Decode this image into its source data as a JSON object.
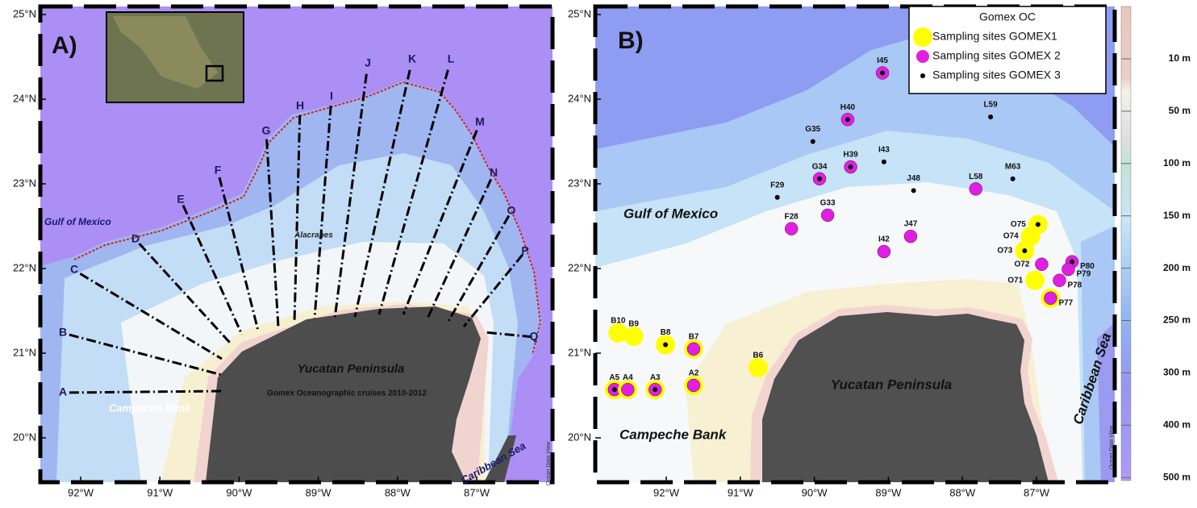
{
  "panel_a": {
    "label": "A)",
    "lat_ticks": [
      {
        "value": 25,
        "label": "25°N"
      },
      {
        "value": 24,
        "label": "24°N"
      },
      {
        "value": 23,
        "label": "23°N"
      },
      {
        "value": 22,
        "label": "22°N"
      },
      {
        "value": 21,
        "label": "21°N"
      },
      {
        "value": 20,
        "label": "20°N"
      }
    ],
    "lon_ticks": [
      {
        "value": -92,
        "label": "92°W"
      },
      {
        "value": -91,
        "label": "91°W"
      },
      {
        "value": -90,
        "label": "90°W"
      },
      {
        "value": -89,
        "label": "89°W"
      },
      {
        "value": -88,
        "label": "88°W"
      },
      {
        "value": -87,
        "label": "87°W"
      }
    ],
    "transects": [
      "A",
      "B",
      "C",
      "D",
      "E",
      "F",
      "G",
      "H",
      "I",
      "J",
      "K",
      "L",
      "M",
      "N",
      "O",
      "P",
      "Q"
    ],
    "places": [
      "Gulf of Mexico",
      "Alacranes",
      "Yucatan Peninsula",
      "Gomex Oceanographic cruises 2010-2012",
      "Campeche Bank",
      "Caribbean Sea"
    ],
    "credit": "Ocean Data View"
  },
  "panel_b": {
    "label": "B)",
    "lat_ticks": [
      {
        "value": 25,
        "label": "25°N"
      },
      {
        "value": 24,
        "label": "24°N"
      },
      {
        "value": 23,
        "label": "23°N"
      },
      {
        "value": 22,
        "label": "22°N"
      },
      {
        "value": 21,
        "label": "21°N"
      },
      {
        "value": 20,
        "label": "20°N"
      }
    ],
    "lon_ticks": [
      {
        "value": -92,
        "label": "92°W"
      },
      {
        "value": -91,
        "label": "91°W"
      },
      {
        "value": -90,
        "label": "90°W"
      },
      {
        "value": -89,
        "label": "89°W"
      },
      {
        "value": -88,
        "label": "88°W"
      },
      {
        "value": -87,
        "label": "87°W"
      }
    ],
    "legend": {
      "title": "Gomex OC",
      "series": [
        {
          "name": "Sampling sites GOMEX1",
          "color": "#ffff00"
        },
        {
          "name": "Sampling sites GOMEX 2",
          "color": "#e020e0"
        },
        {
          "name": "Sampling sites GOMEX 3",
          "color": "#000000"
        }
      ]
    },
    "sites": [
      {
        "label": "I45",
        "lon": -89.08,
        "lat": 24.31,
        "sets": [
          false,
          true,
          true
        ]
      },
      {
        "label": "H40",
        "lon": -89.55,
        "lat": 23.76,
        "sets": [
          false,
          true,
          true
        ]
      },
      {
        "label": "L59",
        "lon": -87.62,
        "lat": 23.79,
        "sets": [
          false,
          false,
          true
        ]
      },
      {
        "label": "G35",
        "lon": -90.02,
        "lat": 23.5,
        "sets": [
          false,
          false,
          true
        ]
      },
      {
        "label": "H39",
        "lon": -89.51,
        "lat": 23.2,
        "sets": [
          false,
          true,
          true
        ]
      },
      {
        "label": "I43",
        "lon": -89.06,
        "lat": 23.26,
        "sets": [
          false,
          false,
          true
        ]
      },
      {
        "label": "G34",
        "lon": -89.93,
        "lat": 23.06,
        "sets": [
          false,
          true,
          true
        ]
      },
      {
        "label": "J48",
        "lon": -88.66,
        "lat": 22.92,
        "sets": [
          false,
          false,
          true
        ]
      },
      {
        "label": "L58",
        "lon": -87.82,
        "lat": 22.94,
        "sets": [
          false,
          true,
          false
        ]
      },
      {
        "label": "M63",
        "lon": -87.32,
        "lat": 23.06,
        "sets": [
          false,
          false,
          true
        ]
      },
      {
        "label": "F29",
        "lon": -90.5,
        "lat": 22.84,
        "sets": [
          false,
          false,
          true
        ]
      },
      {
        "label": "F28",
        "lon": -90.31,
        "lat": 22.47,
        "sets": [
          false,
          true,
          false
        ]
      },
      {
        "label": "G33",
        "lon": -89.82,
        "lat": 22.63,
        "sets": [
          false,
          true,
          false
        ]
      },
      {
        "label": "J47",
        "lon": -88.7,
        "lat": 22.38,
        "sets": [
          false,
          true,
          false
        ]
      },
      {
        "label": "I42",
        "lon": -89.06,
        "lat": 22.2,
        "sets": [
          false,
          true,
          false
        ]
      },
      {
        "label": "O75",
        "lon": -86.98,
        "lat": 22.52,
        "sets": [
          true,
          false,
          true
        ]
      },
      {
        "label": "O74",
        "lon": -87.08,
        "lat": 22.38,
        "sets": [
          true,
          false,
          false
        ]
      },
      {
        "label": "O73",
        "lon": -87.16,
        "lat": 22.21,
        "sets": [
          true,
          false,
          true
        ]
      },
      {
        "label": "O72",
        "lon": -86.93,
        "lat": 22.05,
        "sets": [
          false,
          true,
          false
        ]
      },
      {
        "label": "P80",
        "lon": -86.52,
        "lat": 22.08,
        "sets": [
          false,
          true,
          true
        ]
      },
      {
        "label": "P79",
        "lon": -86.57,
        "lat": 21.99,
        "sets": [
          false,
          true,
          false
        ]
      },
      {
        "label": "O71",
        "lon": -87.02,
        "lat": 21.86,
        "sets": [
          true,
          false,
          false
        ]
      },
      {
        "label": "P78",
        "lon": -86.69,
        "lat": 21.86,
        "sets": [
          false,
          true,
          false
        ]
      },
      {
        "label": "P77",
        "lon": -86.81,
        "lat": 21.65,
        "sets": [
          true,
          true,
          false
        ]
      },
      {
        "label": "B10",
        "lon": -92.65,
        "lat": 21.24,
        "sets": [
          true,
          false,
          false
        ]
      },
      {
        "label": "B9",
        "lon": -92.44,
        "lat": 21.2,
        "sets": [
          true,
          false,
          false
        ]
      },
      {
        "label": "B8",
        "lon": -92.01,
        "lat": 21.1,
        "sets": [
          true,
          false,
          true
        ]
      },
      {
        "label": "B7",
        "lon": -91.63,
        "lat": 21.05,
        "sets": [
          true,
          true,
          false
        ]
      },
      {
        "label": "B6",
        "lon": -90.76,
        "lat": 20.83,
        "sets": [
          true,
          false,
          false
        ]
      },
      {
        "label": "A5",
        "lon": -92.7,
        "lat": 20.57,
        "sets": [
          true,
          true,
          true
        ]
      },
      {
        "label": "A4",
        "lon": -92.52,
        "lat": 20.57,
        "sets": [
          true,
          true,
          false
        ]
      },
      {
        "label": "A3",
        "lon": -92.15,
        "lat": 20.57,
        "sets": [
          true,
          true,
          true
        ]
      },
      {
        "label": "A2",
        "lon": -91.63,
        "lat": 20.62,
        "sets": [
          true,
          true,
          false
        ]
      }
    ],
    "places": [
      "Gulf of Mexico",
      "Yucatan Peninsula",
      "Campeche Bank",
      "Caribbean Sea"
    ],
    "credit": "Ocean Data View"
  },
  "colorbar": {
    "ticks": [
      {
        "value": 10,
        "label": "10 m"
      },
      {
        "value": 50,
        "label": "50 m"
      },
      {
        "value": 100,
        "label": "100 m"
      },
      {
        "value": 150,
        "label": "150 m"
      },
      {
        "value": 200,
        "label": "200 m"
      },
      {
        "value": 250,
        "label": "250 m"
      },
      {
        "value": 300,
        "label": "300 m"
      },
      {
        "value": 400,
        "label": "400 m"
      },
      {
        "value": 500,
        "label": "500 m"
      }
    ]
  }
}
